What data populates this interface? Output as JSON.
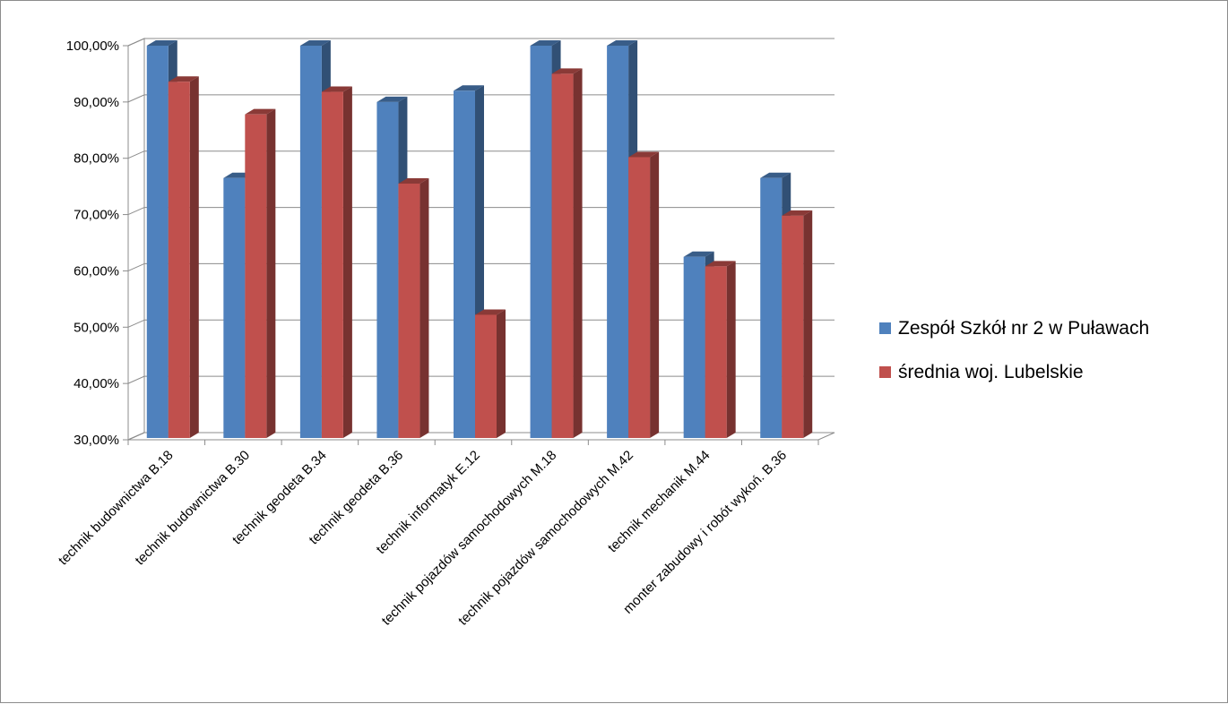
{
  "chart_data": {
    "type": "bar",
    "categories": [
      "technik budownictwa B.18",
      "technik budownictwa B.30",
      "technik geodeta B.34",
      "technik geodeta B.36",
      "technik informatyk E.12",
      "technik pojazdów samochodowych M.18",
      "technik pojazdów samochodowych M.42",
      "technik mechanik M.44",
      "monter zabudowy i robót wykoń. B.36"
    ],
    "series": [
      {
        "name": "Zespół Szkół nr 2 w Puławach",
        "color": "#4F81BD",
        "values": [
          100.0,
          76.5,
          100.0,
          90.0,
          92.0,
          100.0,
          100.0,
          62.5,
          76.5
        ]
      },
      {
        "name": "średnia woj. Lubelskie",
        "color": "#C0504D",
        "values": [
          93.6,
          87.8,
          91.8,
          75.5,
          52.2,
          95.0,
          80.2,
          60.8,
          69.8
        ]
      }
    ],
    "ylim": [
      30,
      100
    ],
    "yticks": [
      "100,00%",
      "90,00%",
      "80,00%",
      "70,00%",
      "60,00%",
      "50,00%",
      "40,00%",
      "30,00%"
    ],
    "grid": true,
    "legend_position": "right",
    "title": "",
    "xlabel": "",
    "ylabel": ""
  }
}
